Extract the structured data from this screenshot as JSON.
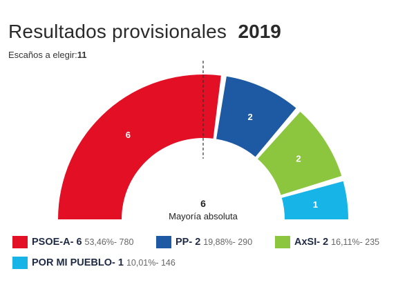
{
  "header": {
    "title": "Resultados provisionales",
    "year": "2019",
    "seats_label": "Escaños a elegir:",
    "seats_value": "11"
  },
  "chart_data": {
    "type": "hemicycle",
    "total_seats": 11,
    "majority": {
      "value": "6",
      "label": "Mayoría absoluta"
    },
    "series": [
      {
        "name": "PSOE-A",
        "seats": 6,
        "seats_label": "6",
        "percent": "53,46%",
        "votes": "780",
        "color": "#e30f24",
        "legend_name": "PSOE-A- 6",
        "legend_detail": "53,46%- 780"
      },
      {
        "name": "PP",
        "seats": 2,
        "seats_label": "2",
        "percent": "19,88%",
        "votes": "290",
        "color": "#1d5aa3",
        "legend_name": "PP- 2",
        "legend_detail": "19,88%- 290"
      },
      {
        "name": "AxSI",
        "seats": 2,
        "seats_label": "2",
        "percent": "16,11%",
        "votes": "235",
        "color": "#8cc63f",
        "legend_name": "AxSI- 2",
        "legend_detail": "16,11%- 235"
      },
      {
        "name": "POR MI PUEBLO",
        "seats": 1,
        "seats_label": "1",
        "percent": "10,01%",
        "votes": "146",
        "color": "#17b4e8",
        "legend_name": "POR MI PUEBLO- 1",
        "legend_detail": "10,01%- 146"
      }
    ]
  }
}
